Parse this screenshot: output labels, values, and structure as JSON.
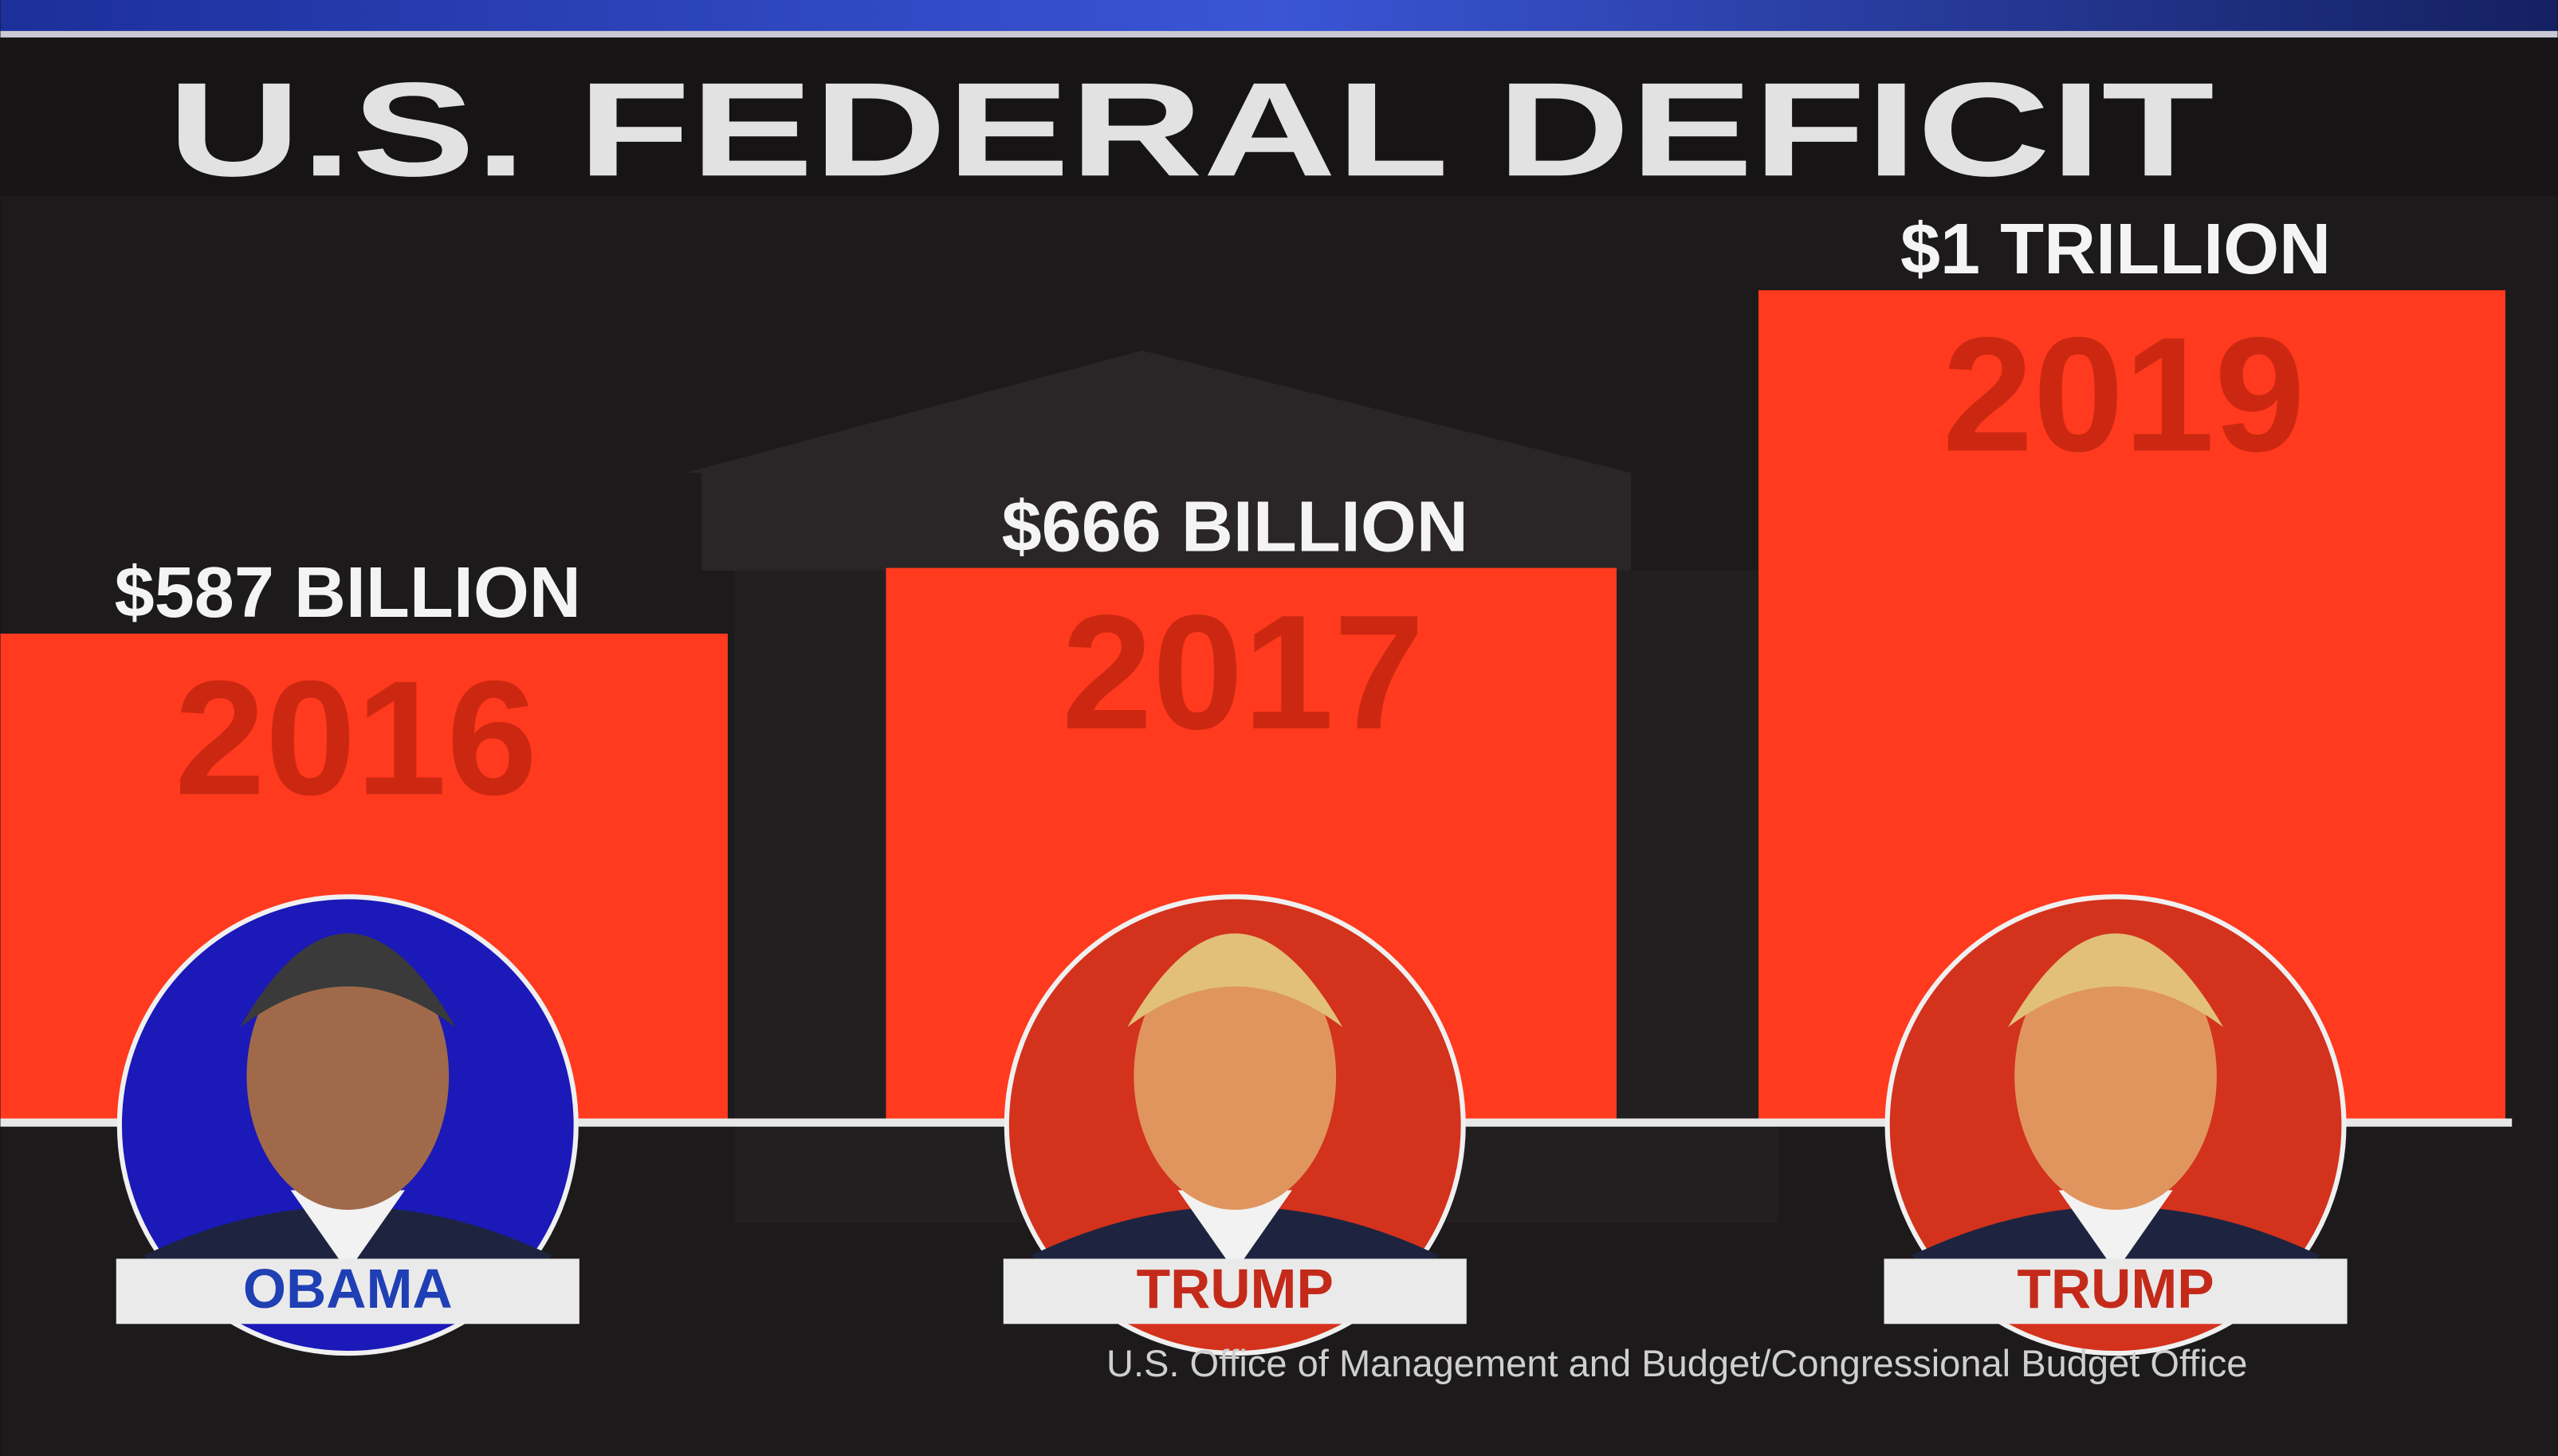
{
  "chart_data": {
    "type": "bar",
    "title": "U.S. FEDERAL DEFICIT",
    "categories": [
      "2016",
      "2017",
      "2019"
    ],
    "values": [
      587,
      666,
      1000
    ],
    "value_labels": [
      "$587 BILLION",
      "$666 BILLION",
      "$1 TRILLION"
    ],
    "color": "#ff3a1e",
    "category_color": "#c4260f",
    "presidents": [
      "OBAMA",
      "TRUMP",
      "TRUMP"
    ],
    "president_colors": [
      "#1f3fb4",
      "#c42a1a",
      "#c42a1a"
    ],
    "portrait_colors": [
      "#1b19b8",
      "#d3321c",
      "#d3321c"
    ],
    "source": "U.S. Office of Management and Budget/Congressional Budget Office"
  }
}
